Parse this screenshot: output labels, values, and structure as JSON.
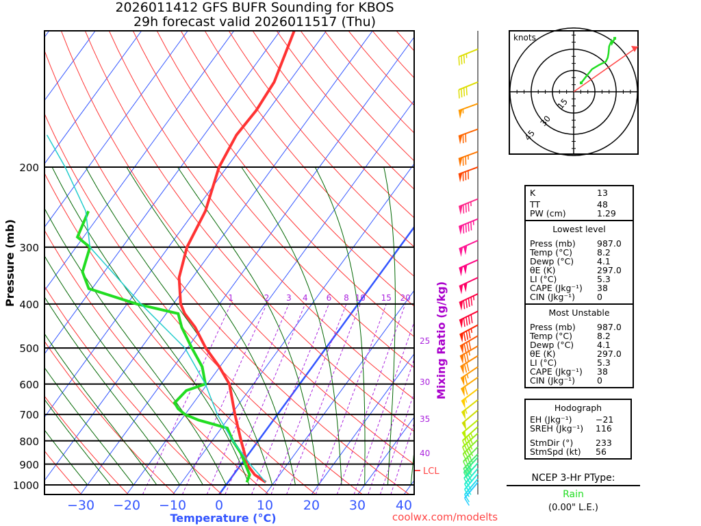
{
  "title": {
    "line1": "2026011412 GFS BUFR Sounding for KBOS",
    "line2": "29h forecast valid 2026011517 (Thu)"
  },
  "axes": {
    "ylabel": "Pressure (mb)",
    "xlabel": "Temperature (°C)",
    "mixing_ratio_label": "Mixing Ratio (g/kg)",
    "pressure_ticks": [
      "200",
      "300",
      "400",
      "500",
      "600",
      "700",
      "800",
      "900",
      "1000"
    ],
    "temperature_ticks": [
      "−30",
      "−20",
      "−10",
      "0",
      "10",
      "20",
      "30",
      "40"
    ],
    "mixing_ratio_ticks": [
      "1",
      "2",
      "3",
      "4",
      "6",
      "8",
      "10",
      "15",
      "20"
    ],
    "mixing_ratio_side_ticks": [
      "25",
      "30",
      "35",
      "40"
    ],
    "lcl_label": "LCL"
  },
  "chart_data": {
    "type": "line",
    "title": "2026011412 GFS BUFR Sounding for KBOS — 29h forecast valid 2026011517 (Thu)",
    "xlabel": "Temperature (°C)",
    "ylabel": "Pressure (mb)",
    "ylim": [
      1050,
      100
    ],
    "xlim_at_1050mb": [
      -40,
      42
    ],
    "pressure_levels": [
      200,
      300,
      400,
      500,
      600,
      700,
      800,
      900,
      1000
    ],
    "isotherm_values": [
      -150,
      -140,
      -130,
      -120,
      -110,
      -100,
      -90,
      -80,
      -70,
      -60,
      -50,
      -40,
      -30,
      -20,
      -10,
      0,
      10,
      20,
      30,
      40,
      50
    ],
    "mixing_ratio_values": [
      1,
      2,
      3,
      4,
      6,
      8,
      10,
      15,
      20,
      25,
      30,
      35,
      40
    ],
    "lcl_pressure": 930,
    "series": [
      {
        "name": "Temperature",
        "color": "#ff3333",
        "p": [
          987,
          950,
          900,
          850,
          800,
          700,
          600,
          550,
          500,
          450,
          420,
          400,
          350,
          300,
          250,
          200,
          170,
          150,
          130,
          100
        ],
        "t": [
          8.2,
          4.6,
          1.2,
          -1.1,
          -3.7,
          -9.2,
          -15.2,
          -20.1,
          -26.0,
          -31.6,
          -36.0,
          -38.4,
          -42.9,
          -46.0,
          -47.7,
          -51.7,
          -53.0,
          -52.6,
          -53.2,
          -57.0
        ]
      },
      {
        "name": "Dewpoint",
        "color": "#22dd22",
        "p": [
          987,
          950,
          850,
          800,
          750,
          720,
          700,
          680,
          660,
          620,
          600,
          550,
          500,
          450,
          420,
          400,
          370,
          340,
          300,
          285,
          250
        ],
        "t": [
          4.1,
          3.5,
          -1.9,
          -5.5,
          -8.7,
          -16.2,
          -20.0,
          -22.4,
          -24.1,
          -23.5,
          -20.4,
          -23.8,
          -29.0,
          -34.5,
          -37.4,
          -47.9,
          -60.7,
          -64.7,
          -67.0,
          -71.3,
          -73.0
        ]
      },
      {
        "name": "Parcel",
        "color": "#22cccc",
        "p": [
          987,
          900,
          800,
          700,
          600,
          500,
          400,
          300,
          250,
          200,
          170
        ],
        "t": [
          8.2,
          1.9,
          -5.5,
          -13.0,
          -20.4,
          -30.5,
          -47.0,
          -67.0,
          -73.6,
          -85.0,
          -94.0
        ]
      }
    ]
  },
  "winds": [
    {
      "p": 110,
      "dir": 248,
      "spd": 35,
      "color": "#dddd00"
    },
    {
      "p": 130,
      "dir": 248,
      "spd": 40,
      "color": "#dddd00"
    },
    {
      "p": 145,
      "dir": 250,
      "spd": 55,
      "color": "#ff9900"
    },
    {
      "p": 165,
      "dir": 250,
      "spd": 70,
      "color": "#ff6600"
    },
    {
      "p": 185,
      "dir": 250,
      "spd": 75,
      "color": "#ff7700"
    },
    {
      "p": 200,
      "dir": 250,
      "spd": 80,
      "color": "#ff4400"
    },
    {
      "p": 235,
      "dir": 248,
      "spd": 85,
      "color": "#ff2288"
    },
    {
      "p": 260,
      "dir": 248,
      "spd": 95,
      "color": "#ff1493"
    },
    {
      "p": 290,
      "dir": 246,
      "spd": 100,
      "color": "#ff1493"
    },
    {
      "p": 320,
      "dir": 246,
      "spd": 100,
      "color": "#ff0080"
    },
    {
      "p": 350,
      "dir": 245,
      "spd": 100,
      "color": "#ff0066"
    },
    {
      "p": 380,
      "dir": 245,
      "spd": 95,
      "color": "#ff0044"
    },
    {
      "p": 415,
      "dir": 244,
      "spd": 90,
      "color": "#ff0033"
    },
    {
      "p": 445,
      "dir": 242,
      "spd": 85,
      "color": "#ff2200"
    },
    {
      "p": 470,
      "dir": 240,
      "spd": 80,
      "color": "#ff5500"
    },
    {
      "p": 495,
      "dir": 240,
      "spd": 75,
      "color": "#ff7700"
    },
    {
      "p": 520,
      "dir": 238,
      "spd": 70,
      "color": "#ff8800"
    },
    {
      "p": 550,
      "dir": 236,
      "spd": 65,
      "color": "#ff9900"
    },
    {
      "p": 580,
      "dir": 235,
      "spd": 60,
      "color": "#ffaa00"
    },
    {
      "p": 615,
      "dir": 233,
      "spd": 55,
      "color": "#ffcc00"
    },
    {
      "p": 650,
      "dir": 232,
      "spd": 55,
      "color": "#dddd00"
    },
    {
      "p": 685,
      "dir": 230,
      "spd": 50,
      "color": "#ccdd00"
    },
    {
      "p": 720,
      "dir": 230,
      "spd": 50,
      "color": "#bbee00"
    },
    {
      "p": 745,
      "dir": 228,
      "spd": 45,
      "color": "#aaee00"
    },
    {
      "p": 770,
      "dir": 228,
      "spd": 45,
      "color": "#99ee11"
    },
    {
      "p": 795,
      "dir": 226,
      "spd": 40,
      "color": "#88ee22"
    },
    {
      "p": 825,
      "dir": 225,
      "spd": 40,
      "color": "#66ee44"
    },
    {
      "p": 855,
      "dir": 224,
      "spd": 35,
      "color": "#44ee66"
    },
    {
      "p": 870,
      "dir": 223,
      "spd": 35,
      "color": "#33ee88"
    },
    {
      "p": 895,
      "dir": 222,
      "spd": 30,
      "color": "#22eeaa"
    },
    {
      "p": 920,
      "dir": 220,
      "spd": 25,
      "color": "#22eecc"
    },
    {
      "p": 945,
      "dir": 220,
      "spd": 20,
      "color": "#22eedd"
    },
    {
      "p": 970,
      "dir": 220,
      "spd": 15,
      "color": "#22ddee"
    },
    {
      "p": 987,
      "dir": 220,
      "spd": 10,
      "color": "#22ccff"
    }
  ],
  "hodograph": {
    "label": "knots",
    "ring_labels": [
      "15",
      "30",
      "45"
    ],
    "rings_kt": [
      15,
      30,
      45
    ],
    "trace_uv_kt": [
      [
        5.3,
        6.3
      ],
      [
        9,
        11
      ],
      [
        13,
        16
      ],
      [
        18,
        19
      ],
      [
        22.7,
        21.3
      ],
      [
        24,
        24
      ],
      [
        24.6,
        27.1
      ],
      [
        25,
        32
      ],
      [
        26.6,
        35.7
      ],
      [
        27,
        34
      ],
      [
        29,
        37.7
      ]
    ],
    "storm_motion": {
      "dir": 233,
      "spd_kt": 56,
      "u": 45.4,
      "v": 31.9
    },
    "trace_color": "#22dd22",
    "storm_color": "#ff4444"
  },
  "indices": {
    "general": [
      {
        "label": "K",
        "value": "13"
      },
      {
        "label": "TT",
        "value": "48"
      },
      {
        "label": "PW (cm)",
        "value": "1.29"
      }
    ],
    "lowest_level": {
      "title": "Lowest level",
      "rows": [
        {
          "label": "Press (mb)",
          "value": "987.0"
        },
        {
          "label": "Temp (°C)",
          "value": "8.2"
        },
        {
          "label": "Dewp (°C)",
          "value": "4.1"
        },
        {
          "label": "θE (K)",
          "value": "297.0"
        },
        {
          "label": "LI (°C)",
          "value": "5.3"
        },
        {
          "label": "CAPE (Jkg⁻¹)",
          "value": "38"
        },
        {
          "label": "CIN (Jkg⁻¹)",
          "value": "0"
        }
      ]
    },
    "most_unstable": {
      "title": "Most Unstable",
      "rows": [
        {
          "label": "Press (mb)",
          "value": "987.0"
        },
        {
          "label": "Temp (°C)",
          "value": "8.2"
        },
        {
          "label": "Dewp (°C)",
          "value": "4.1"
        },
        {
          "label": "θE (K)",
          "value": "297.0"
        },
        {
          "label": "LI (°C)",
          "value": "5.3"
        },
        {
          "label": "CAPE (Jkg⁻¹)",
          "value": "38"
        },
        {
          "label": "CIN (Jkg⁻¹)",
          "value": "0"
        }
      ]
    },
    "hodograph": {
      "title": "Hodograph",
      "rows": [
        {
          "label": "EH (Jkg⁻¹)",
          "value": "−21"
        },
        {
          "label": "SREH (Jkg⁻¹)",
          "value": "116"
        },
        {
          "label": "StmDir (°)",
          "value": "233"
        },
        {
          "label": "StmSpd (kt)",
          "value": "56"
        }
      ]
    }
  },
  "ptype": {
    "title": "NCEP 3-Hr PType:",
    "value": "Rain",
    "value_color": "#22dd22",
    "amount": "(0.00\" L.E.)"
  },
  "footer": {
    "site": "coolwx.com/modelts"
  },
  "colors": {
    "isotherm": "#3355ff",
    "dry_adiabat": "#ff3333",
    "moist_adiabat": "#006600",
    "mixing_ratio": "#aa22dd",
    "axis_label": "#3355ff",
    "mixing_label": "#aa00cc",
    "lcl": "#ff4444"
  }
}
